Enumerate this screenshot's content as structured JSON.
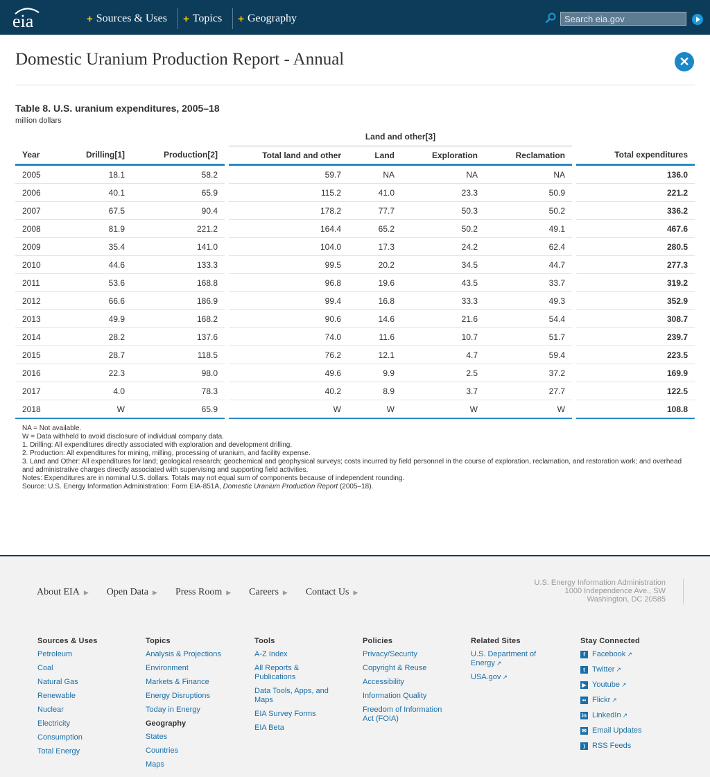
{
  "header": {
    "logo": "eia",
    "nav": [
      "Sources & Uses",
      "Topics",
      "Geography"
    ],
    "search_placeholder": "Search eia.gov"
  },
  "page": {
    "title": "Domestic Uranium Production Report - Annual",
    "table_title": "Table 8. U.S. uranium expenditures, 2005–18",
    "units": "million dollars"
  },
  "table": {
    "group_header": "Land and other[3]",
    "columns": [
      "Year",
      "Drilling[1]",
      "Production[2]",
      "Total land and other",
      "Land",
      "Exploration",
      "Reclamation",
      "Total expenditures"
    ],
    "rows": [
      [
        "2005",
        "18.1",
        "58.2",
        "59.7",
        "NA",
        "NA",
        "NA",
        "136.0"
      ],
      [
        "2006",
        "40.1",
        "65.9",
        "115.2",
        "41.0",
        "23.3",
        "50.9",
        "221.2"
      ],
      [
        "2007",
        "67.5",
        "90.4",
        "178.2",
        "77.7",
        "50.3",
        "50.2",
        "336.2"
      ],
      [
        "2008",
        "81.9",
        "221.2",
        "164.4",
        "65.2",
        "50.2",
        "49.1",
        "467.6"
      ],
      [
        "2009",
        "35.4",
        "141.0",
        "104.0",
        "17.3",
        "24.2",
        "62.4",
        "280.5"
      ],
      [
        "2010",
        "44.6",
        "133.3",
        "99.5",
        "20.2",
        "34.5",
        "44.7",
        "277.3"
      ],
      [
        "2011",
        "53.6",
        "168.8",
        "96.8",
        "19.6",
        "43.5",
        "33.7",
        "319.2"
      ],
      [
        "2012",
        "66.6",
        "186.9",
        "99.4",
        "16.8",
        "33.3",
        "49.3",
        "352.9"
      ],
      [
        "2013",
        "49.9",
        "168.2",
        "90.6",
        "14.6",
        "21.6",
        "54.4",
        "308.7"
      ],
      [
        "2014",
        "28.2",
        "137.6",
        "74.0",
        "11.6",
        "10.7",
        "51.7",
        "239.7"
      ],
      [
        "2015",
        "28.7",
        "118.5",
        "76.2",
        "12.1",
        "4.7",
        "59.4",
        "223.5"
      ],
      [
        "2016",
        "22.3",
        "98.0",
        "49.6",
        "9.9",
        "2.5",
        "37.2",
        "169.9"
      ],
      [
        "2017",
        "4.0",
        "78.3",
        "40.2",
        "8.9",
        "3.7",
        "27.7",
        "122.5"
      ],
      [
        "2018",
        "W",
        "65.9",
        "W",
        "W",
        "W",
        "W",
        "108.8"
      ]
    ]
  },
  "notes": {
    "na": "NA = Not available.",
    "w": "W = Data withheld to avoid disclosure of individual company data.",
    "n1": "1. Drilling: All expenditures directly associated with exploration and development drilling.",
    "n2": "2. Production: All expenditures for mining, milling, processing of uranium, and facility expense.",
    "n3": "3. Land and Other: All expenditures for land; geological research; geochemical and geophysical surveys; costs incurred by field personnel in the course of exploration, reclamation, and restoration work; and overhead and administrative charges directly associated with supervising and supporting field activities.",
    "notes": "Notes: Expenditures are in nominal U.S. dollars. Totals may not equal sum of components because of independent rounding.",
    "source_prefix": "Source: U.S. Energy Information Administration: Form EIA-851A, ",
    "source_title": "Domestic Uranium Production Report",
    "source_suffix": " (2005–18)."
  },
  "footer": {
    "links": [
      "About EIA",
      "Open Data",
      "Press Room",
      "Careers",
      "Contact Us"
    ],
    "address": [
      "U.S. Energy Information Administration",
      "1000 Independence Ave., SW",
      "Washington, DC 20585"
    ],
    "col_sources": {
      "head": "Sources & Uses",
      "items": [
        "Petroleum",
        "Coal",
        "Natural Gas",
        "Renewable",
        "Nuclear",
        "Electricity",
        "Consumption",
        "Total Energy"
      ]
    },
    "col_topics": {
      "head": "Topics",
      "items": [
        "Analysis & Projections",
        "Environment",
        "Markets & Finance",
        "Energy Disruptions",
        "Today in Energy"
      ],
      "sub": "Geography",
      "sub_items": [
        "States",
        "Countries",
        "Maps"
      ]
    },
    "col_tools": {
      "head": "Tools",
      "items": [
        "A-Z Index",
        "All Reports & Publications",
        "Data Tools, Apps, and Maps",
        "EIA Survey Forms",
        "EIA Beta"
      ]
    },
    "col_policies": {
      "head": "Policies",
      "items": [
        "Privacy/Security",
        "Copyright & Reuse",
        "Accessibility",
        "Information Quality",
        "Freedom of Information Act (FOIA)"
      ]
    },
    "col_related": {
      "head": "Related Sites",
      "items": [
        "U.S. Department of Energy",
        "USA.gov"
      ]
    },
    "col_social": {
      "head": "Stay Connected",
      "items": [
        "Facebook",
        "Twitter",
        "Youtube",
        "Flickr",
        "LinkedIn",
        "Email Updates",
        "RSS Feeds"
      ]
    }
  },
  "colors": {
    "header_bg": "#0d3c5b",
    "accent": "#2a8ac7",
    "link": "#1a6fa8",
    "nav_plus": "#f5c400"
  }
}
